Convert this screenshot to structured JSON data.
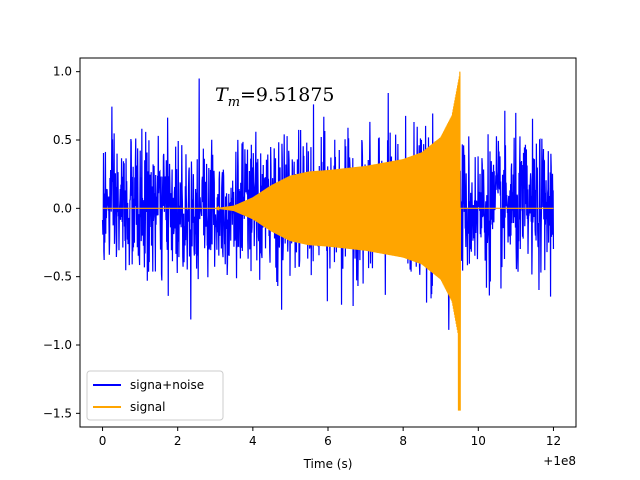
{
  "chart_data": {
    "type": "line",
    "title": "",
    "xlabel": "Time (s)",
    "ylabel": "",
    "x_offset_label": "+1e8",
    "xlim": [
      -0.6,
      12.6
    ],
    "ylim": [
      -1.6,
      1.1
    ],
    "xticks": [
      0,
      2,
      4,
      6,
      8,
      10,
      12
    ],
    "xtick_labels": [
      "0",
      "2",
      "4",
      "6",
      "8",
      "10",
      "12"
    ],
    "yticks": [
      -1.5,
      -1.0,
      -0.5,
      0.0,
      0.5,
      1.0
    ],
    "ytick_labels": [
      "−1.5",
      "−1.0",
      "−0.5",
      "0.0",
      "0.5",
      "1.0"
    ],
    "grid": false,
    "legend": "lower-left",
    "annotation": {
      "text": "T_m=9.51875",
      "sub_base": "T",
      "sub_index": "m",
      "rest": "=9.51875",
      "x": 3.0,
      "y": 0.8
    },
    "series": [
      {
        "name": "signa+noise",
        "color": "#0000ff",
        "x_range": [
          0,
          12
        ],
        "noise_amplitude_typical": 0.55,
        "noise_extremes": [
          1.0,
          -1.08
        ]
      },
      {
        "name": "signal",
        "color": "#ffa500",
        "x_range": [
          0,
          12
        ],
        "chirp_end": 9.51875,
        "envelope": [
          {
            "x": 0.0,
            "y": 0.0
          },
          {
            "x": 3.0,
            "y": 0.0
          },
          {
            "x": 3.5,
            "y": 0.02
          },
          {
            "x": 4.0,
            "y": 0.08
          },
          {
            "x": 4.5,
            "y": 0.17
          },
          {
            "x": 5.0,
            "y": 0.24
          },
          {
            "x": 5.5,
            "y": 0.27
          },
          {
            "x": 6.0,
            "y": 0.28
          },
          {
            "x": 7.0,
            "y": 0.31
          },
          {
            "x": 8.0,
            "y": 0.36
          },
          {
            "x": 8.5,
            "y": 0.41
          },
          {
            "x": 9.0,
            "y": 0.52
          },
          {
            "x": 9.3,
            "y": 0.68
          },
          {
            "x": 9.45,
            "y": 0.9
          },
          {
            "x": 9.51875,
            "y": 1.0
          },
          {
            "x": 9.52,
            "y": 0.0
          },
          {
            "x": 12.0,
            "y": 0.0
          }
        ],
        "extremes": [
          1.0,
          -1.48
        ]
      }
    ]
  }
}
